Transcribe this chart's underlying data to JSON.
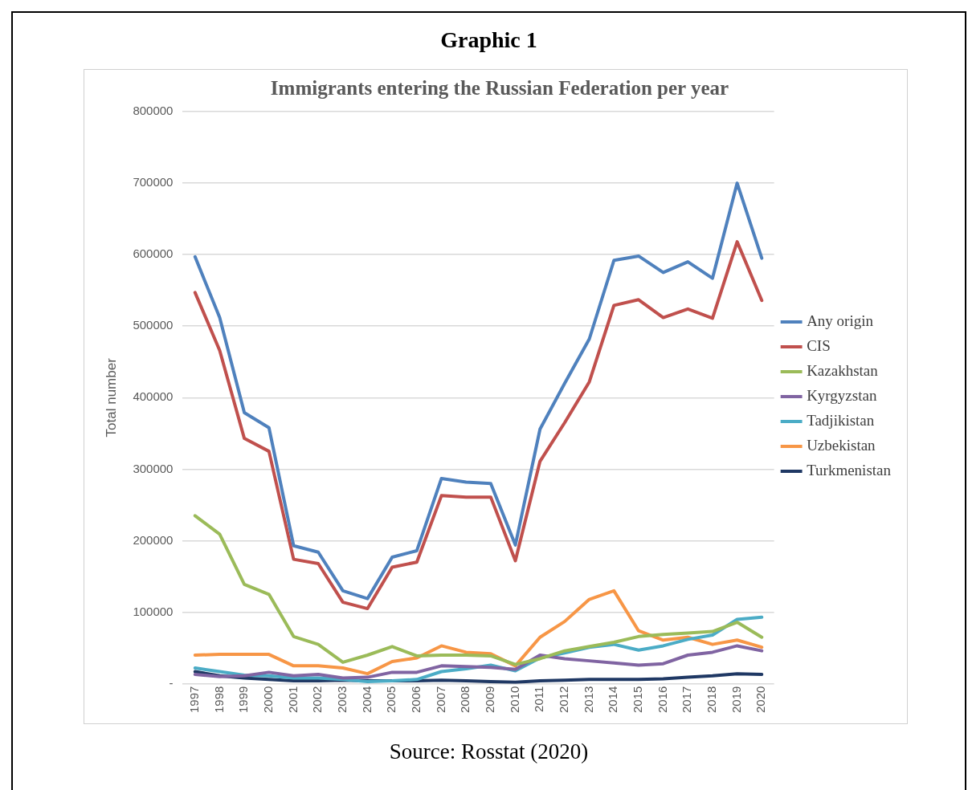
{
  "chart_data": {
    "type": "line",
    "title": "Graphic 1",
    "subtitle": "Immigrants entering the Russian Federation per year",
    "ylabel": "Total number",
    "categories": [
      "1997",
      "1998",
      "1999",
      "2000",
      "2001",
      "2002",
      "2003",
      "2004",
      "2005",
      "2006",
      "2007",
      "2008",
      "2009",
      "2010",
      "2011",
      "2012",
      "2013",
      "2014",
      "2015",
      "2016",
      "2017",
      "2018",
      "2019",
      "2020"
    ],
    "series": [
      {
        "name": "Any origin",
        "color": "#4f81bd",
        "values": [
          597000,
          512000,
          379000,
          358000,
          193000,
          184000,
          130000,
          119000,
          177000,
          186000,
          287000,
          282000,
          280000,
          194000,
          356000,
          420000,
          482000,
          592000,
          598000,
          575000,
          590000,
          567000,
          700000,
          595000
        ]
      },
      {
        "name": "CIS",
        "color": "#c0504d",
        "values": [
          547000,
          466000,
          343000,
          325000,
          174000,
          168000,
          114000,
          105000,
          163000,
          170000,
          263000,
          261000,
          261000,
          172000,
          311000,
          365000,
          422000,
          529000,
          537000,
          512000,
          524000,
          511000,
          618000,
          536000
        ]
      },
      {
        "name": "Kazakhstan",
        "color": "#9bbb59",
        "values": [
          235000,
          209000,
          139000,
          125000,
          66000,
          55000,
          30000,
          40000,
          52000,
          39000,
          40000,
          40000,
          39000,
          27000,
          35000,
          46000,
          52000,
          58000,
          66000,
          69000,
          71000,
          73000,
          86000,
          65000
        ]
      },
      {
        "name": "Kyrgyzstan",
        "color": "#8064a2",
        "values": [
          13000,
          10000,
          11000,
          16000,
          11000,
          13000,
          8000,
          9000,
          16000,
          16000,
          25000,
          24000,
          23000,
          20000,
          40000,
          35000,
          32000,
          29000,
          26000,
          28000,
          40000,
          44000,
          53000,
          46000
        ]
      },
      {
        "name": "Tadjikistan",
        "color": "#4bacc6",
        "values": [
          22000,
          17000,
          12000,
          11000,
          8000,
          8000,
          6000,
          3000,
          4000,
          6000,
          17000,
          21000,
          26000,
          18000,
          36000,
          43000,
          51000,
          55000,
          47000,
          53000,
          62000,
          68000,
          90000,
          93000
        ]
      },
      {
        "name": "Uzbekistan",
        "color": "#f79646",
        "values": [
          40000,
          41000,
          41000,
          41000,
          25000,
          25000,
          22000,
          14000,
          31000,
          36000,
          53000,
          44000,
          42000,
          25000,
          65000,
          87000,
          118000,
          130000,
          74000,
          61000,
          65000,
          55000,
          61000,
          51000
        ]
      },
      {
        "name": "Turkmenistan",
        "color": "#1f3864",
        "values": [
          17000,
          11000,
          8000,
          6000,
          4000,
          4000,
          5000,
          4000,
          4000,
          4000,
          5000,
          4000,
          3000,
          2000,
          4000,
          5000,
          6000,
          6000,
          6000,
          7000,
          9000,
          11000,
          14000,
          13000
        ]
      }
    ],
    "ylim": [
      0,
      800000
    ],
    "yticks": [
      {
        "value": 0,
        "label": "-"
      },
      100000,
      200000,
      300000,
      400000,
      500000,
      600000,
      700000,
      800000
    ],
    "grid": "y",
    "legend": "right",
    "marker": "none",
    "line_style": "solid",
    "annotations": [
      "Source: Rosstat (2020)"
    ]
  }
}
